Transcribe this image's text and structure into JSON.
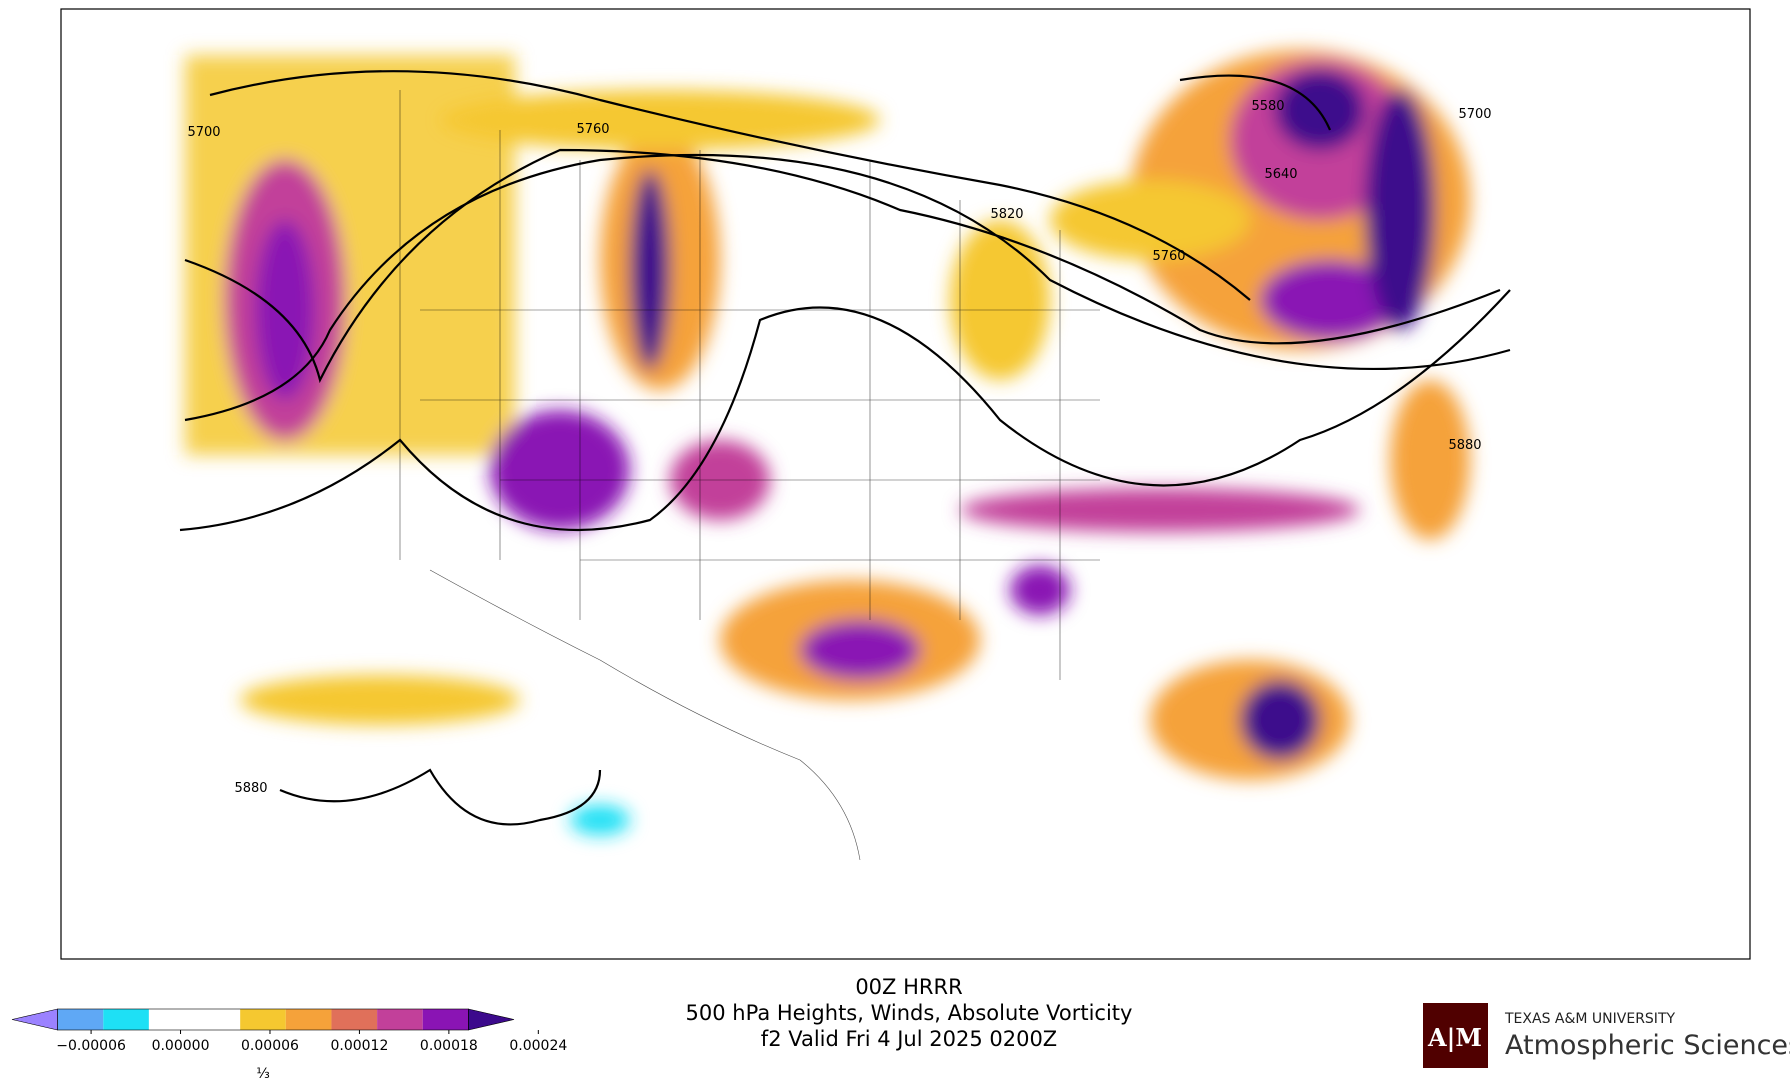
{
  "map": {
    "contour_labels": [
      "5700",
      "5760",
      "5580",
      "5700",
      "5640",
      "5820",
      "5760",
      "5880",
      "5880"
    ]
  },
  "colorbar": {
    "colors": [
      "#9b82ff",
      "#5fa8f5",
      "#1ee0f5",
      "#ffffff",
      "#ffffff",
      "#f5c830",
      "#f5a23a",
      "#e0705a",
      "#c2409a",
      "#8a14b4",
      "#3c0a8c"
    ],
    "ticks": [
      "−0.00006",
      "0.00000",
      "0.00006",
      "0.00012",
      "0.00018",
      "0.00024"
    ],
    "offset": "⅓"
  },
  "title": {
    "line1": "00Z HRRR",
    "line2": "500 hPa Heights, Winds, Absolute Vorticity",
    "line3": "f2 Valid Fri 4 Jul 2025 0200Z"
  },
  "logo": {
    "mark": "A|M",
    "university": "TEXAS A&M UNIVERSITY",
    "department": "Atmospheric Sciences"
  }
}
